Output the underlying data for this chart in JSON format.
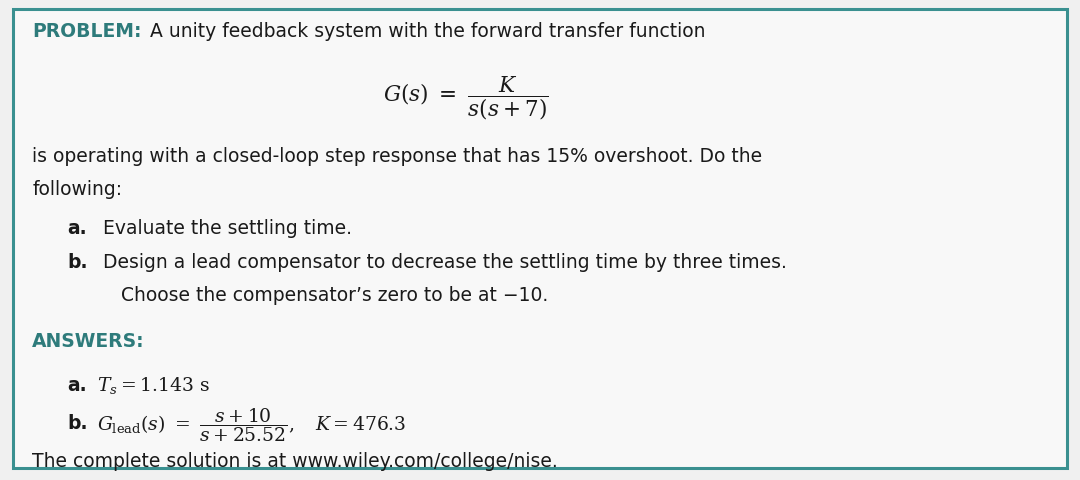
{
  "bg_color": "#f0f0f0",
  "inner_bg": "#f5f5f5",
  "border_color": "#3a9090",
  "title_bold_color": "#2e7b7b",
  "text_color": "#1a1a1a",
  "teal_color": "#2e7b7b",
  "font_size_main": 13.5,
  "problem_bold": "PROBLEM:",
  "problem_rest": "  A unity feedback system with the forward transfer function",
  "body_line1": "is operating with a closed-loop step response that has 15% overshoot. Do the",
  "body_line2": "following:",
  "item_a_bold": "a.",
  "item_a_text": " Evaluate the settling time.",
  "item_b_bold": "b.",
  "item_b_line1": " Design a lead compensator to decrease the settling time by three times.",
  "item_b_line2": "    Choose the compensator’s zero to be at −10.",
  "answers_label": "ANSWERS:",
  "ans_a_label": "a.",
  "ans_b_label": "b.",
  "footer": "The complete solution is at www.wiley.com/college/nise."
}
